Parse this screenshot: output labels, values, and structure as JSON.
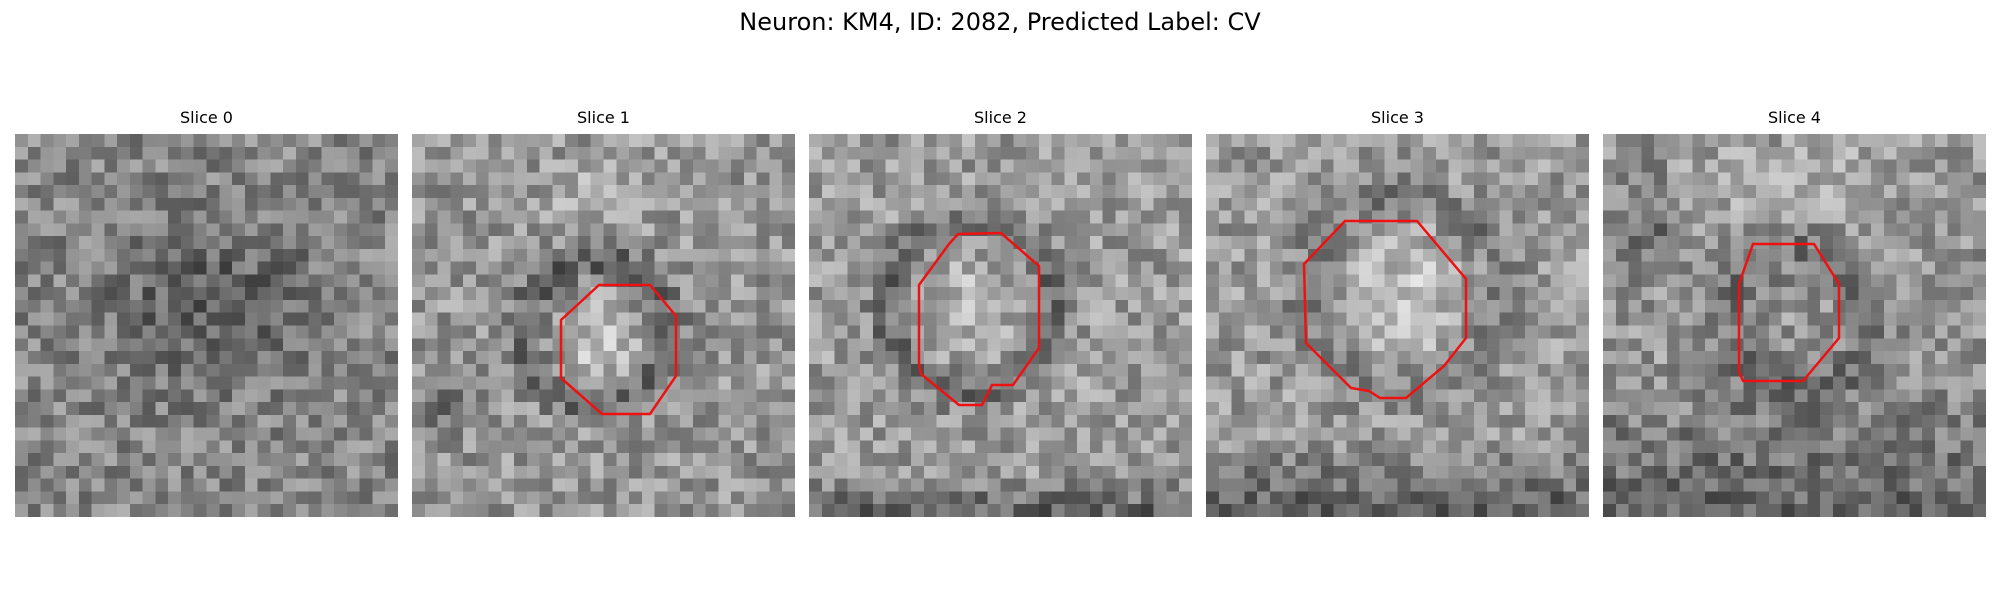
{
  "figure": {
    "title": "Neuron: KM4, ID: 2082, Predicted Label: CV"
  },
  "panels": [
    {
      "title": "Slice 0",
      "has_contour": false
    },
    {
      "title": "Slice 1",
      "has_contour": true
    },
    {
      "title": "Slice 2",
      "has_contour": true
    },
    {
      "title": "Slice 3",
      "has_contour": true
    },
    {
      "title": "Slice 4",
      "has_contour": true
    }
  ],
  "colors": {
    "contour": "#ee1111"
  }
}
